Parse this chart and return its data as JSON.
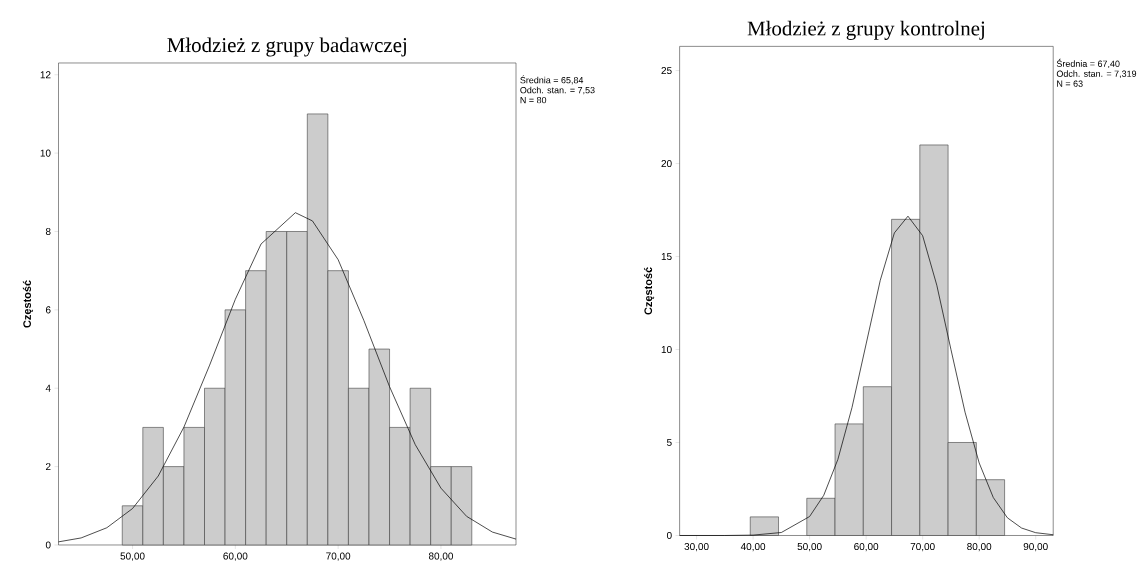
{
  "chart_data": [
    {
      "type": "histogram",
      "title": "Młodzież z grupy badawczej",
      "ylabel": "Częstość",
      "bins": [
        49,
        51,
        53,
        55,
        57,
        59,
        61,
        63,
        65,
        67,
        69,
        71,
        73,
        75,
        77,
        79,
        81,
        83
      ],
      "values": [
        1,
        3,
        2,
        3,
        4,
        6,
        7,
        8,
        8,
        11,
        7,
        4,
        5,
        3,
        4,
        2,
        2
      ],
      "color": "#cccccc",
      "series": [
        {
          "type": "line",
          "color": "#000000",
          "x": [
            42.8,
            45,
            47.5,
            50,
            52.5,
            55,
            57.5,
            60,
            62.5,
            65.84,
            67.5,
            70,
            72.5,
            75,
            77.5,
            80,
            82.5,
            85,
            87.3
          ],
          "values": [
            0.08,
            0.18,
            0.44,
            0.93,
            1.76,
            3.01,
            4.59,
            6.27,
            7.68,
            8.48,
            8.27,
            7.28,
            5.73,
            4.04,
            2.56,
            1.45,
            0.73,
            0.33,
            0.15
          ]
        }
      ],
      "annotations": [
        "Średnia = 65,84",
        "Odch. stan. = 7,53",
        "N = 80"
      ],
      "xlim": [
        42.8,
        87.3
      ],
      "ylim": [
        0,
        12.3
      ],
      "xticks": [
        {
          "value": 50,
          "label": "50,00"
        },
        {
          "value": 60,
          "label": "60,00"
        },
        {
          "value": 70,
          "label": "70,00"
        },
        {
          "value": 80,
          "label": "80,00"
        }
      ],
      "yticks": [
        0,
        2,
        4,
        6,
        8,
        10,
        12
      ]
    },
    {
      "type": "histogram",
      "title": "Młodzież z grupy kontrolnej",
      "ylabel": "Częstość",
      "bins": [
        39.5,
        44.5,
        49.5,
        54.5,
        59.5,
        64.5,
        69.5,
        74.5,
        79.5,
        84.5
      ],
      "values": [
        1,
        0,
        2,
        6,
        8,
        17,
        21,
        5,
        3
      ],
      "color": "#cccccc",
      "series": [
        {
          "type": "line",
          "color": "#000000",
          "x": [
            27,
            35,
            40,
            45,
            50,
            52.5,
            55,
            57.5,
            60,
            62.5,
            65,
            67.4,
            70,
            72.5,
            75,
            77.5,
            80,
            82.5,
            85,
            87.5,
            90,
            93.1
          ],
          "values": [
            0,
            0,
            0.02,
            0.16,
            1.02,
            2.16,
            4.09,
            6.88,
            10.3,
            13.72,
            16.27,
            17.17,
            16.12,
            13.46,
            10.01,
            6.63,
            3.9,
            2.04,
            0.95,
            0.4,
            0.15,
            0.04
          ]
        }
      ],
      "annotations": [
        "Średnia = 67,40",
        "Odch. stan. = 7,319",
        "N = 63"
      ],
      "xlim": [
        27,
        93.1
      ],
      "ylim": [
        0,
        26.3
      ],
      "xticks": [
        {
          "value": 30,
          "label": "30,00"
        },
        {
          "value": 40,
          "label": "40,00"
        },
        {
          "value": 50,
          "label": "50,00"
        },
        {
          "value": 60,
          "label": "60,00"
        },
        {
          "value": 70,
          "label": "70,00"
        },
        {
          "value": 80,
          "label": "80,00"
        },
        {
          "value": 90,
          "label": "90,00"
        }
      ],
      "yticks": [
        0,
        5,
        10,
        15,
        20,
        25
      ]
    }
  ]
}
